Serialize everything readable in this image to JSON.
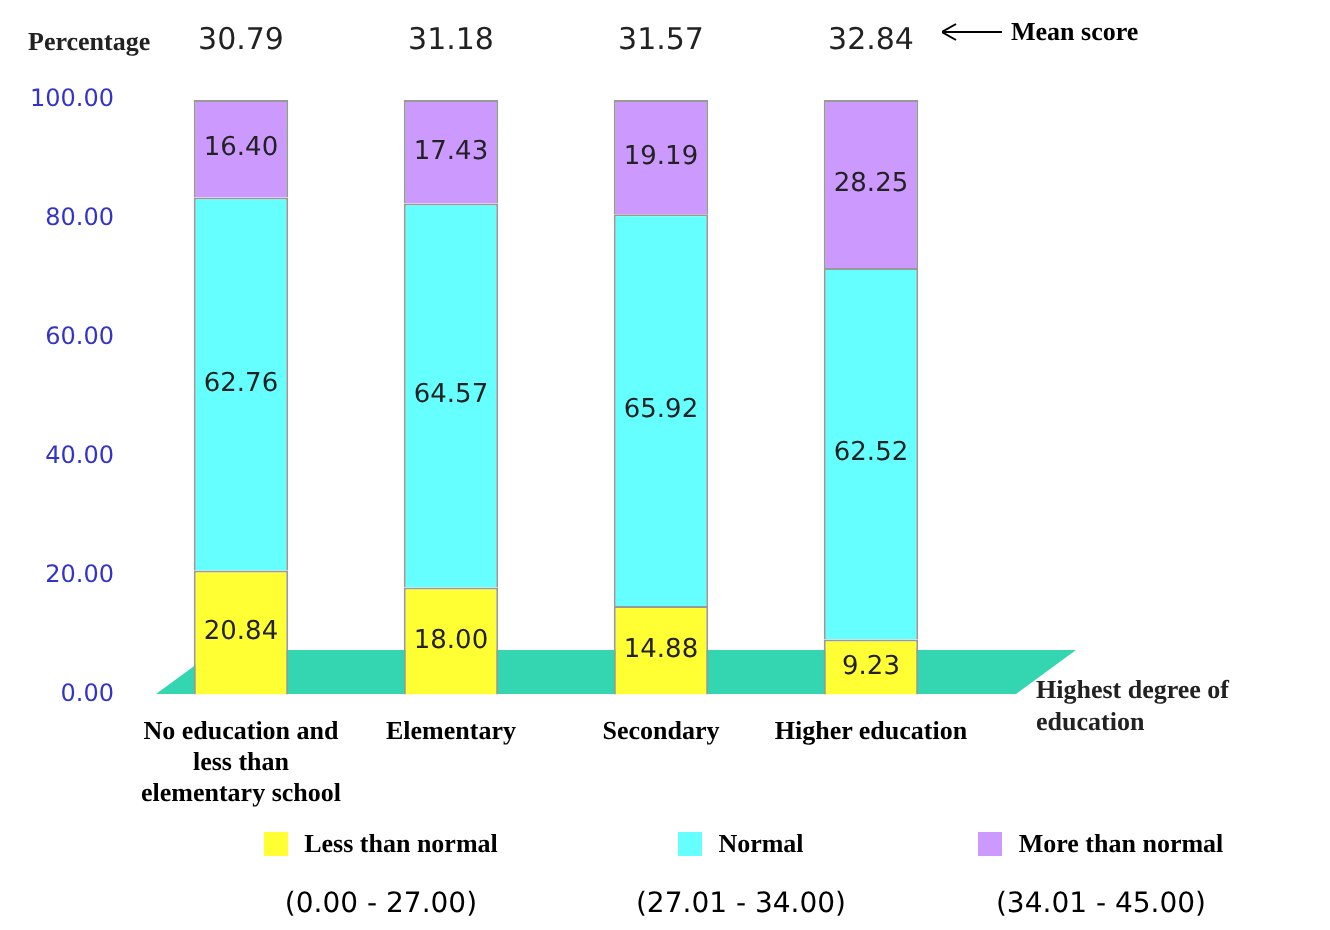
{
  "chart_data": {
    "type": "bar",
    "stacked": true,
    "ylabel": "Percentage",
    "xlabel": "Highest degree of education",
    "categories": [
      "No education and less than elementary school",
      "Elementary",
      "Secondary",
      "Higher education"
    ],
    "series": [
      {
        "name": "Less than normal",
        "color": "#ffff33",
        "values": [
          20.84,
          18.0,
          14.88,
          9.23
        ],
        "value_labels": [
          "20.84",
          "18.00",
          "14.88",
          "9.23"
        ]
      },
      {
        "name": "Normal",
        "color": "#66ffff",
        "values": [
          62.76,
          64.57,
          65.92,
          62.52
        ],
        "value_labels": [
          "62.76",
          "64.57",
          "65.92",
          "62.52"
        ]
      },
      {
        "name": "More than normal",
        "color": "#cc99ff",
        "values": [
          16.4,
          17.43,
          19.19,
          28.25
        ],
        "value_labels": [
          "16.40",
          "17.43",
          "19.19",
          "28.25"
        ]
      }
    ],
    "ylim": [
      0,
      100
    ],
    "yticks": [
      {
        "value": 0,
        "label": "0.00"
      },
      {
        "value": 20,
        "label": "20.00"
      },
      {
        "value": 40,
        "label": "40.00"
      },
      {
        "value": 60,
        "label": "60.00"
      },
      {
        "value": 80,
        "label": "80.00"
      },
      {
        "value": 100,
        "label": "100.00"
      }
    ],
    "grid": false,
    "legend": "bottom",
    "annotations": [
      "30.79",
      "31.18",
      "31.57",
      "32.84",
      "Mean score",
      "(0.00 - 27.00)",
      "(27.01 - 34.00)",
      "(34.01 - 45.00)"
    ]
  }
}
